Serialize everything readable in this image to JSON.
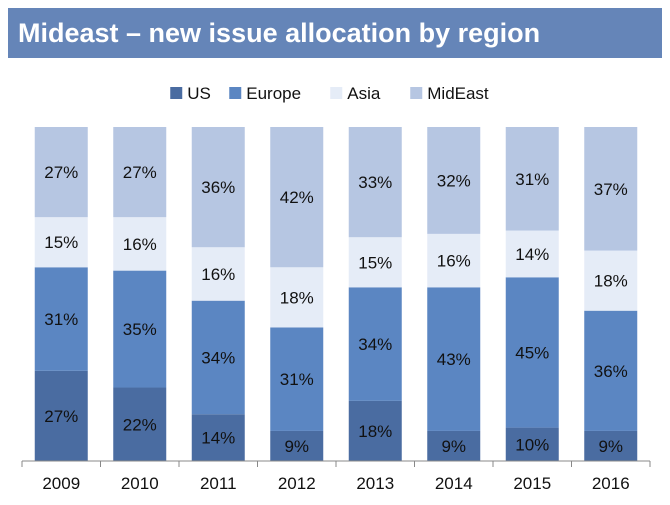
{
  "title": "Mideast – new issue allocation by region",
  "colors": {
    "US": "#4a6ca1",
    "Europe": "#5b86c2",
    "Asia": "#e5ecf7",
    "MidEast": "#b6c6e2",
    "title_bg": "#6585b8"
  },
  "chart_data": {
    "type": "bar",
    "stacked": true,
    "normalized_percent": true,
    "categories": [
      "2009",
      "2010",
      "2011",
      "2012",
      "2013",
      "2014",
      "2015",
      "2016"
    ],
    "series": [
      {
        "name": "US",
        "values": [
          27,
          22,
          14,
          9,
          18,
          9,
          10,
          9
        ]
      },
      {
        "name": "Europe",
        "values": [
          31,
          35,
          34,
          31,
          34,
          43,
          45,
          36
        ]
      },
      {
        "name": "Asia",
        "values": [
          15,
          16,
          16,
          18,
          15,
          16,
          14,
          18
        ]
      },
      {
        "name": "MidEast",
        "values": [
          27,
          27,
          36,
          42,
          33,
          32,
          31,
          37
        ]
      }
    ],
    "legend_position": "top-center",
    "ylim": [
      0,
      100
    ],
    "gridlines": false,
    "data_labels": true
  }
}
